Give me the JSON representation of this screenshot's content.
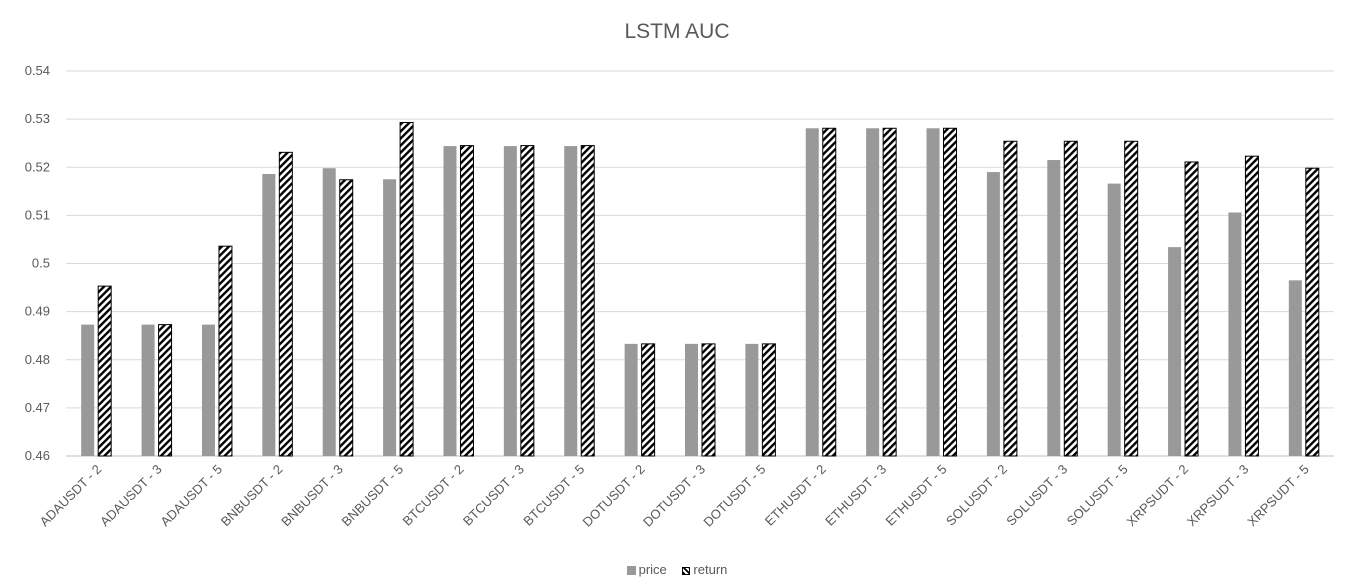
{
  "chart_data": {
    "type": "bar",
    "title": "LSTM AUC",
    "xlabel": "",
    "ylabel": "",
    "ylim": [
      0.46,
      0.54
    ],
    "yticks": [
      "0.46",
      "0.47",
      "0.48",
      "0.49",
      "0.5",
      "0.51",
      "0.52",
      "0.53",
      "0.54"
    ],
    "grid": true,
    "legend_position": "bottom",
    "categories": [
      "ADAUSDT - 2",
      "ADAUSDT - 3",
      "ADAUSDT - 5",
      "BNBUSDT - 2",
      "BNBUSDT - 3",
      "BNBUSDT - 5",
      "BTCUSDT - 2",
      "BTCUSDT - 3",
      "BTCUSDT - 5",
      "DOTUSDT - 2",
      "DOTUSDT - 3",
      "DOTUSDT - 5",
      "ETHUSDT - 2",
      "ETHUSDT - 3",
      "ETHUSDT - 5",
      "SOLUSDT - 2",
      "SOLUSDT - 3",
      "SOLUSDT - 5",
      "XRPSUDT - 2",
      "XRPSUDT - 3",
      "XRPSUDT - 5"
    ],
    "series": [
      {
        "name": "price",
        "color": "#999999",
        "pattern": "solid",
        "values": [
          0.4873,
          0.4873,
          0.4873,
          0.5186,
          0.5198,
          0.5175,
          0.5244,
          0.5244,
          0.5244,
          0.4833,
          0.4833,
          0.4833,
          0.5281,
          0.5281,
          0.5281,
          0.519,
          0.5215,
          0.5166,
          0.5034,
          0.5106,
          0.4965
        ]
      },
      {
        "name": "return",
        "color": "#000000",
        "pattern": "diagonal-hatch",
        "values": [
          0.4953,
          0.4873,
          0.5036,
          0.5231,
          0.5174,
          0.5293,
          0.5245,
          0.5245,
          0.5245,
          0.4833,
          0.4833,
          0.4833,
          0.5281,
          0.5281,
          0.5281,
          0.5254,
          0.5254,
          0.5254,
          0.5211,
          0.5223,
          0.5198
        ]
      }
    ]
  }
}
